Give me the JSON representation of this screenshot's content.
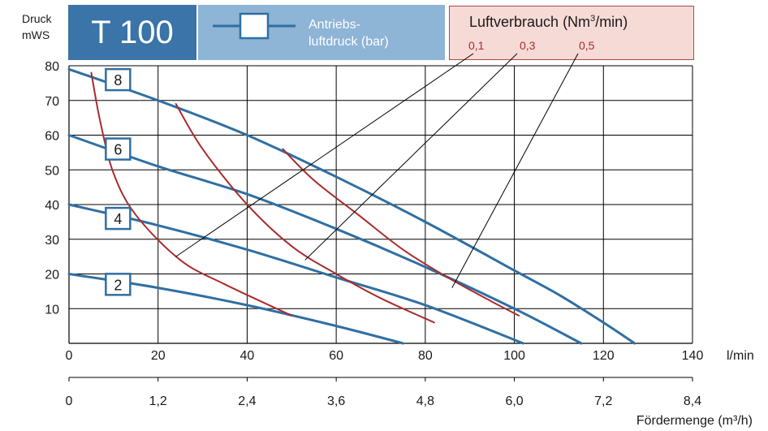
{
  "header": {
    "model": "T 100",
    "legend_label_line1": "Antriebs-",
    "legend_label_line2": "luftdruck (bar)",
    "air_title": "Luftverbrauch (Nm",
    "air_title_sup": "3",
    "air_title_end": "/min)",
    "air_values": [
      "0,1",
      "0,3",
      "0,5"
    ]
  },
  "axes": {
    "ylabel_line1": "Druck",
    "ylabel_line2": "mWS",
    "x_unit": "l/min",
    "x2_label": "Fördermenge (m³/h)"
  },
  "colors": {
    "pressure": "#2f6fa3",
    "air": "#a82d2d",
    "model_bg": "#3a74a8",
    "legend_bg": "#8eb4d6",
    "air_bg": "#f6dad5"
  },
  "chart_data": {
    "type": "line",
    "xlabel": "l/min",
    "ylabel": "Druck mWS",
    "xlim": [
      0,
      140
    ],
    "ylim": [
      0,
      80
    ],
    "x_ticks": [
      0,
      20,
      40,
      60,
      80,
      100,
      120,
      140
    ],
    "y_ticks": [
      10,
      20,
      30,
      40,
      50,
      60,
      70,
      80
    ],
    "x2_label": "Fördermenge (m³/h)",
    "x2_ticks": [
      "0",
      "1,2",
      "2,4",
      "3,6",
      "4,8",
      "6,0",
      "7,2",
      "8,4"
    ],
    "grid": true,
    "series": [
      {
        "name": "8",
        "group": "Antriebsluftdruck (bar)",
        "points": [
          [
            0,
            79
          ],
          [
            20,
            70
          ],
          [
            40,
            60
          ],
          [
            60,
            48
          ],
          [
            80,
            35
          ],
          [
            100,
            21
          ],
          [
            110,
            14
          ],
          [
            120,
            6
          ],
          [
            127,
            0
          ]
        ]
      },
      {
        "name": "6",
        "group": "Antriebsluftdruck (bar)",
        "points": [
          [
            0,
            60
          ],
          [
            20,
            51
          ],
          [
            40,
            43
          ],
          [
            60,
            33
          ],
          [
            80,
            22
          ],
          [
            100,
            10
          ],
          [
            115,
            0
          ]
        ]
      },
      {
        "name": "4",
        "group": "Antriebsluftdruck (bar)",
        "points": [
          [
            0,
            40
          ],
          [
            20,
            34
          ],
          [
            40,
            27
          ],
          [
            60,
            19
          ],
          [
            80,
            11
          ],
          [
            102,
            0
          ]
        ]
      },
      {
        "name": "2",
        "group": "Antriebsluftdruck (bar)",
        "points": [
          [
            0,
            20
          ],
          [
            20,
            16
          ],
          [
            40,
            11
          ],
          [
            60,
            5
          ],
          [
            75,
            0
          ]
        ]
      },
      {
        "name": "0,1",
        "group": "Luftverbrauch (Nm³/min)",
        "points": [
          [
            5,
            78
          ],
          [
            7,
            64
          ],
          [
            10,
            49
          ],
          [
            15,
            37
          ],
          [
            25,
            24
          ],
          [
            35,
            17
          ],
          [
            50,
            8
          ]
        ]
      },
      {
        "name": "0,3",
        "group": "Luftverbrauch (Nm³/min)",
        "points": [
          [
            24,
            69
          ],
          [
            30,
            56
          ],
          [
            40,
            40
          ],
          [
            50,
            28
          ],
          [
            60,
            20
          ],
          [
            70,
            13
          ],
          [
            82,
            6
          ]
        ]
      },
      {
        "name": "0,5",
        "group": "Luftverbrauch (Nm³/min)",
        "points": [
          [
            48,
            56
          ],
          [
            55,
            47
          ],
          [
            65,
            37
          ],
          [
            75,
            27
          ],
          [
            85,
            19
          ],
          [
            95,
            12
          ],
          [
            101,
            8
          ]
        ]
      }
    ],
    "box_labels": [
      {
        "text": "8",
        "x": 11,
        "y": 76
      },
      {
        "text": "6",
        "x": 11,
        "y": 56
      },
      {
        "text": "4",
        "x": 11,
        "y": 36
      },
      {
        "text": "2",
        "x": 11,
        "y": 17
      }
    ]
  }
}
